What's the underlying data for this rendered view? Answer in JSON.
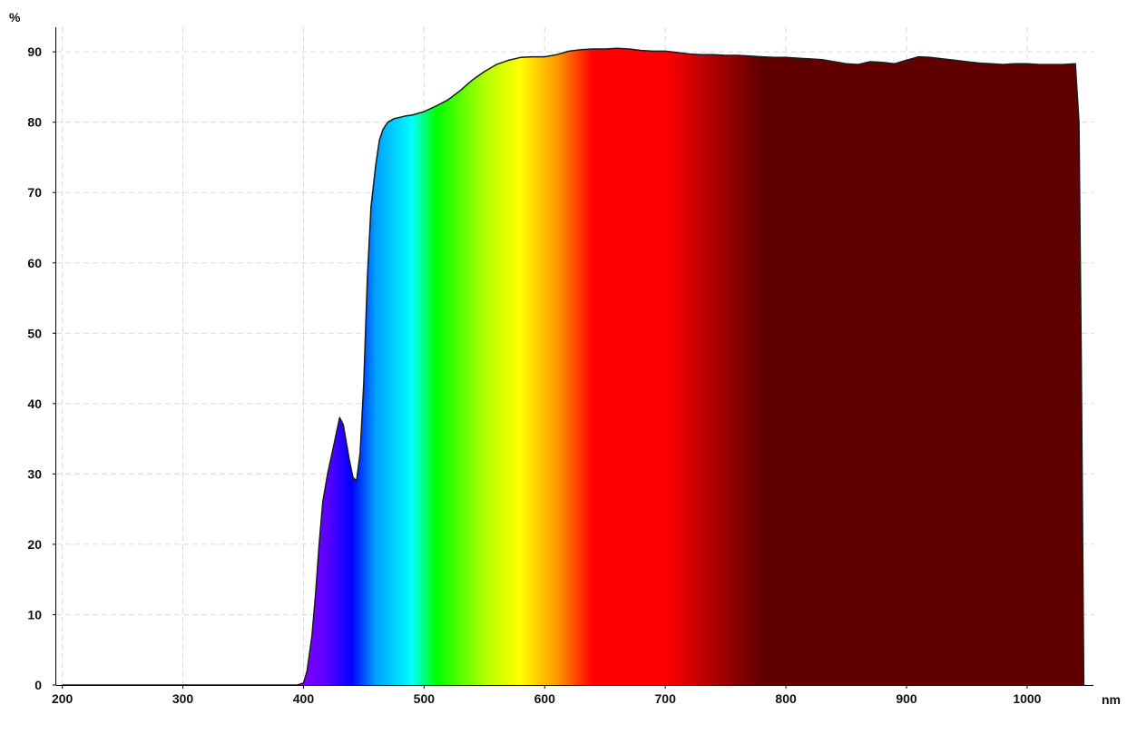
{
  "chart_data": {
    "type": "area",
    "title": "",
    "xlabel": "",
    "ylabel": "",
    "x_unit": "nm",
    "y_unit": "%",
    "xlim": [
      195,
      1055
    ],
    "ylim": [
      0,
      93.5
    ],
    "x_ticks": [
      200,
      300,
      400,
      500,
      600,
      700,
      800,
      900,
      1000
    ],
    "y_ticks": [
      0,
      10,
      20,
      30,
      40,
      50,
      60,
      70,
      80,
      90
    ],
    "grid": true,
    "fill": "visible-spectrum gradient under curve",
    "spectrum_colors": [
      {
        "nm": 400,
        "color": "#7a00ff"
      },
      {
        "nm": 420,
        "color": "#5a00ff"
      },
      {
        "nm": 440,
        "color": "#0000ff"
      },
      {
        "nm": 460,
        "color": "#00a0ff"
      },
      {
        "nm": 490,
        "color": "#00ffff"
      },
      {
        "nm": 510,
        "color": "#00ff00"
      },
      {
        "nm": 550,
        "color": "#b0ff00"
      },
      {
        "nm": 580,
        "color": "#ffff00"
      },
      {
        "nm": 610,
        "color": "#ff9900"
      },
      {
        "nm": 640,
        "color": "#ff0000"
      },
      {
        "nm": 700,
        "color": "#ff0000"
      },
      {
        "nm": 740,
        "color": "#b00000"
      },
      {
        "nm": 780,
        "color": "#600000"
      },
      {
        "nm": 1050,
        "color": "#600000"
      }
    ],
    "series": [
      {
        "x": [
          200,
          300,
          395,
          400,
          403,
          407,
          410,
          413,
          416,
          420,
          425,
          430,
          433,
          435,
          438,
          441,
          444,
          447,
          450,
          453,
          456,
          460,
          463,
          466,
          470,
          475,
          480,
          485,
          490,
          500,
          510,
          520,
          530,
          540,
          550,
          560,
          570,
          580,
          590,
          600,
          610,
          620,
          630,
          640,
          650,
          660,
          670,
          680,
          690,
          700,
          710,
          720,
          730,
          740,
          750,
          760,
          770,
          780,
          790,
          800,
          810,
          820,
          830,
          840,
          850,
          860,
          865,
          870,
          880,
          890,
          900,
          910,
          920,
          930,
          940,
          950,
          960,
          970,
          980,
          990,
          1000,
          1010,
          1020,
          1030,
          1040,
          1043,
          1045,
          1047
        ],
        "y": [
          0,
          0,
          0,
          0.3,
          2,
          7,
          13,
          20,
          26,
          30,
          34,
          38,
          37,
          35,
          32,
          29.5,
          29,
          33,
          43,
          58,
          68,
          74,
          77.5,
          79,
          80,
          80.5,
          80.7,
          80.9,
          81,
          81.5,
          82.3,
          83.2,
          84.5,
          86,
          87.2,
          88.2,
          88.8,
          89.2,
          89.3,
          89.3,
          89.6,
          90.1,
          90.3,
          90.4,
          90.4,
          90.5,
          90.4,
          90.2,
          90.1,
          90.1,
          89.9,
          89.7,
          89.6,
          89.6,
          89.5,
          89.5,
          89.4,
          89.3,
          89.2,
          89.2,
          89.1,
          89.0,
          88.9,
          88.6,
          88.3,
          88.2,
          88.4,
          88.6,
          88.5,
          88.3,
          88.8,
          89.3,
          89.2,
          89.0,
          88.8,
          88.6,
          88.4,
          88.3,
          88.2,
          88.3,
          88.3,
          88.2,
          88.2,
          88.2,
          88.3,
          80,
          45,
          0
        ]
      }
    ]
  }
}
